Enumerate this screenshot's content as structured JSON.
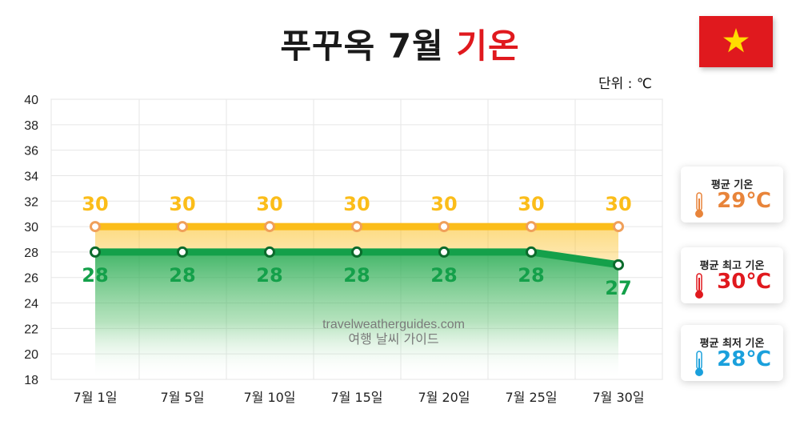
{
  "title": {
    "main": "푸꾸옥 7월",
    "accent": "기온"
  },
  "unit_label": "단위 : ℃",
  "watermark": {
    "line1": "travelweatherguides.com",
    "line2": "여행 날씨 가이드"
  },
  "colors": {
    "high": "#fbbd1a",
    "high_marker": "#f0a05a",
    "low": "#14a04a",
    "low_marker": "#0b6b2c",
    "accent": "#e0191e",
    "avg": "#e8843a",
    "min": "#1aa0dc"
  },
  "chart_data": {
    "type": "line",
    "categories": [
      "7월 1일",
      "7월 5일",
      "7월 10일",
      "7월 15일",
      "7월 20일",
      "7월 25일",
      "7월 30일"
    ],
    "series": [
      {
        "values": [
          30,
          30,
          30,
          30,
          30,
          30,
          30
        ]
      },
      {
        "values": [
          28,
          28,
          28,
          28,
          28,
          28,
          27
        ]
      }
    ],
    "ylim": [
      18,
      40
    ],
    "yticks": [
      18,
      20,
      22,
      24,
      26,
      28,
      30,
      32,
      34,
      36,
      38,
      40
    ],
    "grid": true
  },
  "cards": [
    {
      "label": "평균 기온",
      "value": "29℃",
      "color": "#e8843a",
      "icon": "thermometer-icon"
    },
    {
      "label": "평균 최고 기온",
      "value": "30℃",
      "color": "#e0191e",
      "icon": "thermometer-icon"
    },
    {
      "label": "평균 최저 기온",
      "value": "28℃",
      "color": "#1aa0dc",
      "icon": "thermometer-icon"
    }
  ]
}
